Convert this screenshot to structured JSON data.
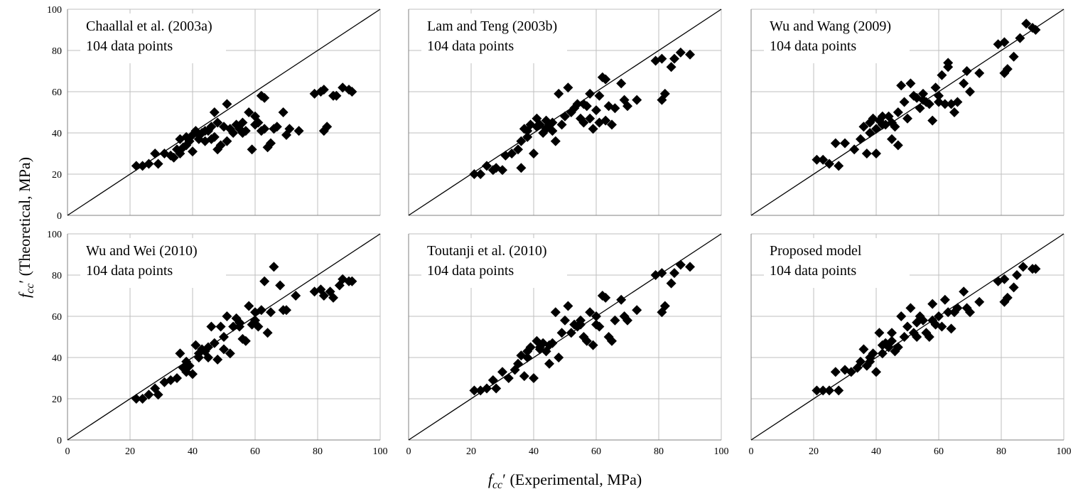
{
  "chart_data": [
    {
      "type": "scatter",
      "title": "Chaallal et al. (2003a)",
      "subtitle": "104 data points",
      "ylabel": [
        "f",
        "cc",
        "′ (Theoretical, MPa)"
      ],
      "color": "#000000",
      "marker": "diamond",
      "grid": true,
      "x": [
        22,
        24,
        26,
        28,
        29,
        31,
        33,
        34,
        35,
        36,
        37,
        38,
        39,
        40,
        40,
        41,
        42,
        43,
        44,
        45,
        46,
        47,
        47,
        48,
        49,
        50,
        51,
        51,
        52,
        53,
        54,
        55,
        56,
        57,
        58,
        59,
        60,
        60,
        62,
        62,
        63,
        64,
        65,
        66,
        67,
        69,
        70,
        71,
        74,
        79,
        81,
        82,
        82,
        83,
        85,
        86,
        88,
        90,
        91,
        36,
        38,
        42,
        44,
        46,
        48,
        56,
        61,
        63
      ],
      "values": [
        24,
        24,
        25,
        30,
        25,
        30,
        29,
        28,
        32,
        37,
        33,
        38,
        36,
        31,
        39,
        41,
        37,
        40,
        36,
        41,
        43,
        38,
        50,
        32,
        34,
        43,
        54,
        36,
        42,
        40,
        44,
        42,
        45,
        41,
        50,
        32,
        44,
        48,
        41,
        58,
        57,
        33,
        35,
        42,
        43,
        50,
        39,
        42,
        41,
        59,
        60,
        41,
        61,
        43,
        58,
        58,
        62,
        61,
        60,
        30,
        34,
        39,
        41,
        37,
        45,
        40,
        45,
        42
      ],
      "xlim": [
        0,
        100
      ],
      "ylim": [
        0,
        100
      ],
      "xticks": [
        0,
        20,
        40,
        60,
        80,
        100
      ],
      "yticks": [
        0,
        20,
        40,
        60,
        80,
        100
      ]
    },
    {
      "type": "scatter",
      "title": "Lam and Teng (2003b)",
      "subtitle": "104 data points",
      "color": "#000000",
      "marker": "diamond",
      "grid": true,
      "x": [
        21,
        23,
        25,
        27,
        28,
        30,
        31,
        33,
        35,
        36,
        36,
        37,
        38,
        39,
        40,
        41,
        42,
        43,
        44,
        45,
        46,
        47,
        48,
        49,
        50,
        51,
        52,
        53,
        54,
        55,
        56,
        57,
        58,
        59,
        60,
        61,
        62,
        63,
        63,
        64,
        65,
        66,
        68,
        69,
        70,
        73,
        79,
        81,
        81,
        82,
        84,
        85,
        87,
        90,
        38,
        41,
        44,
        46,
        56,
        58,
        61
      ],
      "values": [
        20,
        20,
        24,
        22,
        23,
        22,
        29,
        30,
        32,
        23,
        36,
        42,
        41,
        44,
        30,
        47,
        44,
        40,
        46,
        44,
        41,
        36,
        59,
        44,
        48,
        62,
        50,
        52,
        54,
        47,
        45,
        53,
        59,
        42,
        51,
        58,
        67,
        66,
        46,
        53,
        44,
        52,
        64,
        56,
        53,
        56,
        75,
        76,
        56,
        59,
        72,
        76,
        79,
        78,
        38,
        43,
        42,
        45,
        54,
        47,
        45
      ],
      "xlim": [
        0,
        100
      ],
      "ylim": [
        0,
        100
      ],
      "xticks": [
        0,
        20,
        40,
        60,
        80,
        100
      ],
      "yticks": [
        0,
        20,
        40,
        60,
        80,
        100
      ]
    },
    {
      "type": "scatter",
      "title": "Wu and Wang (2009)",
      "subtitle": "104 data points",
      "color": "#000000",
      "marker": "diamond",
      "grid": true,
      "x": [
        21,
        23,
        25,
        27,
        28,
        30,
        33,
        35,
        36,
        37,
        38,
        39,
        40,
        40,
        41,
        42,
        43,
        44,
        45,
        46,
        47,
        47,
        48,
        49,
        50,
        51,
        52,
        53,
        54,
        55,
        56,
        57,
        58,
        59,
        60,
        61,
        62,
        63,
        63,
        64,
        65,
        66,
        68,
        69,
        70,
        73,
        79,
        81,
        81,
        82,
        84,
        86,
        88,
        90,
        91,
        38,
        42,
        45,
        55,
        60
      ],
      "values": [
        27,
        27,
        25,
        35,
        24,
        35,
        32,
        37,
        43,
        30,
        45,
        47,
        30,
        42,
        46,
        48,
        44,
        48,
        37,
        43,
        34,
        50,
        63,
        55,
        47,
        64,
        58,
        57,
        52,
        59,
        55,
        54,
        46,
        62,
        58,
        68,
        54,
        74,
        72,
        54,
        50,
        55,
        64,
        70,
        60,
        69,
        83,
        84,
        69,
        71,
        77,
        86,
        93,
        91,
        90,
        40,
        44,
        45,
        56,
        55
      ],
      "xlim": [
        0,
        100
      ],
      "ylim": [
        0,
        100
      ],
      "xticks": [
        0,
        20,
        40,
        60,
        80,
        100
      ],
      "yticks": [
        0,
        20,
        40,
        60,
        80,
        100
      ]
    },
    {
      "type": "scatter",
      "title": "Wu and Wei (2010)",
      "subtitle": "104 data points",
      "color": "#000000",
      "marker": "diamond",
      "grid": true,
      "x": [
        22,
        24,
        26,
        28,
        29,
        31,
        33,
        35,
        36,
        37,
        38,
        39,
        40,
        41,
        42,
        43,
        44,
        45,
        46,
        47,
        48,
        49,
        50,
        51,
        52,
        53,
        54,
        55,
        56,
        57,
        58,
        59,
        60,
        61,
        62,
        63,
        64,
        65,
        66,
        68,
        69,
        70,
        73,
        79,
        81,
        82,
        84,
        85,
        87,
        88,
        90,
        91,
        38,
        42,
        45,
        50,
        55,
        60
      ],
      "values": [
        20,
        20,
        22,
        25,
        22,
        28,
        29,
        30,
        42,
        35,
        33,
        36,
        32,
        46,
        40,
        44,
        43,
        40,
        55,
        47,
        39,
        55,
        44,
        60,
        42,
        55,
        59,
        57,
        49,
        48,
        65,
        56,
        62,
        55,
        63,
        77,
        52,
        62,
        84,
        75,
        63,
        63,
        70,
        72,
        73,
        70,
        72,
        69,
        75,
        78,
        77,
        77,
        38,
        42,
        45,
        50,
        55,
        58
      ],
      "xlim": [
        0,
        100
      ],
      "ylim": [
        0,
        100
      ],
      "xticks": [
        0,
        20,
        40,
        60,
        80,
        100
      ],
      "yticks": [
        0,
        20,
        40,
        60,
        80,
        100
      ]
    },
    {
      "type": "scatter",
      "title": "Toutanji et al. (2010)",
      "subtitle": "104 data points",
      "xlabel": [
        "f",
        "cc",
        "′ (Experimental, MPa)"
      ],
      "color": "#000000",
      "marker": "diamond",
      "grid": true,
      "x": [
        21,
        23,
        25,
        27,
        28,
        30,
        32,
        34,
        35,
        36,
        37,
        38,
        39,
        40,
        41,
        42,
        43,
        44,
        45,
        46,
        47,
        48,
        49,
        50,
        51,
        52,
        53,
        54,
        55,
        56,
        57,
        58,
        59,
        60,
        61,
        62,
        63,
        64,
        65,
        66,
        68,
        69,
        70,
        73,
        79,
        81,
        81,
        82,
        84,
        85,
        87,
        90,
        38,
        42,
        45,
        55,
        60
      ],
      "values": [
        24,
        24,
        25,
        29,
        25,
        33,
        30,
        34,
        37,
        41,
        31,
        43,
        45,
        30,
        48,
        45,
        47,
        43,
        37,
        47,
        62,
        40,
        52,
        58,
        65,
        52,
        56,
        55,
        58,
        50,
        48,
        62,
        46,
        56,
        55,
        70,
        69,
        50,
        48,
        58,
        68,
        60,
        58,
        63,
        80,
        81,
        62,
        65,
        76,
        81,
        85,
        84,
        40,
        44,
        46,
        56,
        60
      ],
      "xlim": [
        0,
        100
      ],
      "ylim": [
        0,
        100
      ],
      "xticks": [
        0,
        20,
        40,
        60,
        80,
        100
      ],
      "yticks": [
        0,
        20,
        40,
        60,
        80,
        100
      ]
    },
    {
      "type": "scatter",
      "title": "Proposed model",
      "subtitle": "104 data points",
      "color": "#000000",
      "marker": "diamond",
      "grid": true,
      "x": [
        21,
        23,
        25,
        27,
        28,
        30,
        32,
        34,
        35,
        36,
        37,
        38,
        39,
        40,
        41,
        42,
        43,
        44,
        45,
        46,
        47,
        48,
        49,
        50,
        51,
        52,
        53,
        54,
        55,
        56,
        57,
        58,
        59,
        60,
        61,
        62,
        63,
        64,
        65,
        66,
        68,
        69,
        70,
        73,
        79,
        81,
        81,
        82,
        84,
        85,
        87,
        90,
        91,
        38,
        42,
        45,
        53,
        58
      ],
      "values": [
        24,
        24,
        24,
        33,
        24,
        34,
        33,
        35,
        38,
        44,
        36,
        40,
        42,
        33,
        52,
        46,
        47,
        45,
        52,
        43,
        45,
        60,
        50,
        55,
        64,
        52,
        57,
        60,
        58,
        52,
        50,
        66,
        56,
        60,
        55,
        68,
        62,
        54,
        62,
        64,
        72,
        64,
        62,
        67,
        77,
        78,
        67,
        69,
        74,
        80,
        84,
        83,
        83,
        38,
        42,
        48,
        50,
        58
      ],
      "xlim": [
        0,
        100
      ],
      "ylim": [
        0,
        100
      ],
      "xticks": [
        0,
        20,
        40,
        60,
        80,
        100
      ],
      "yticks": [
        0,
        20,
        40,
        60,
        80,
        100
      ]
    }
  ]
}
